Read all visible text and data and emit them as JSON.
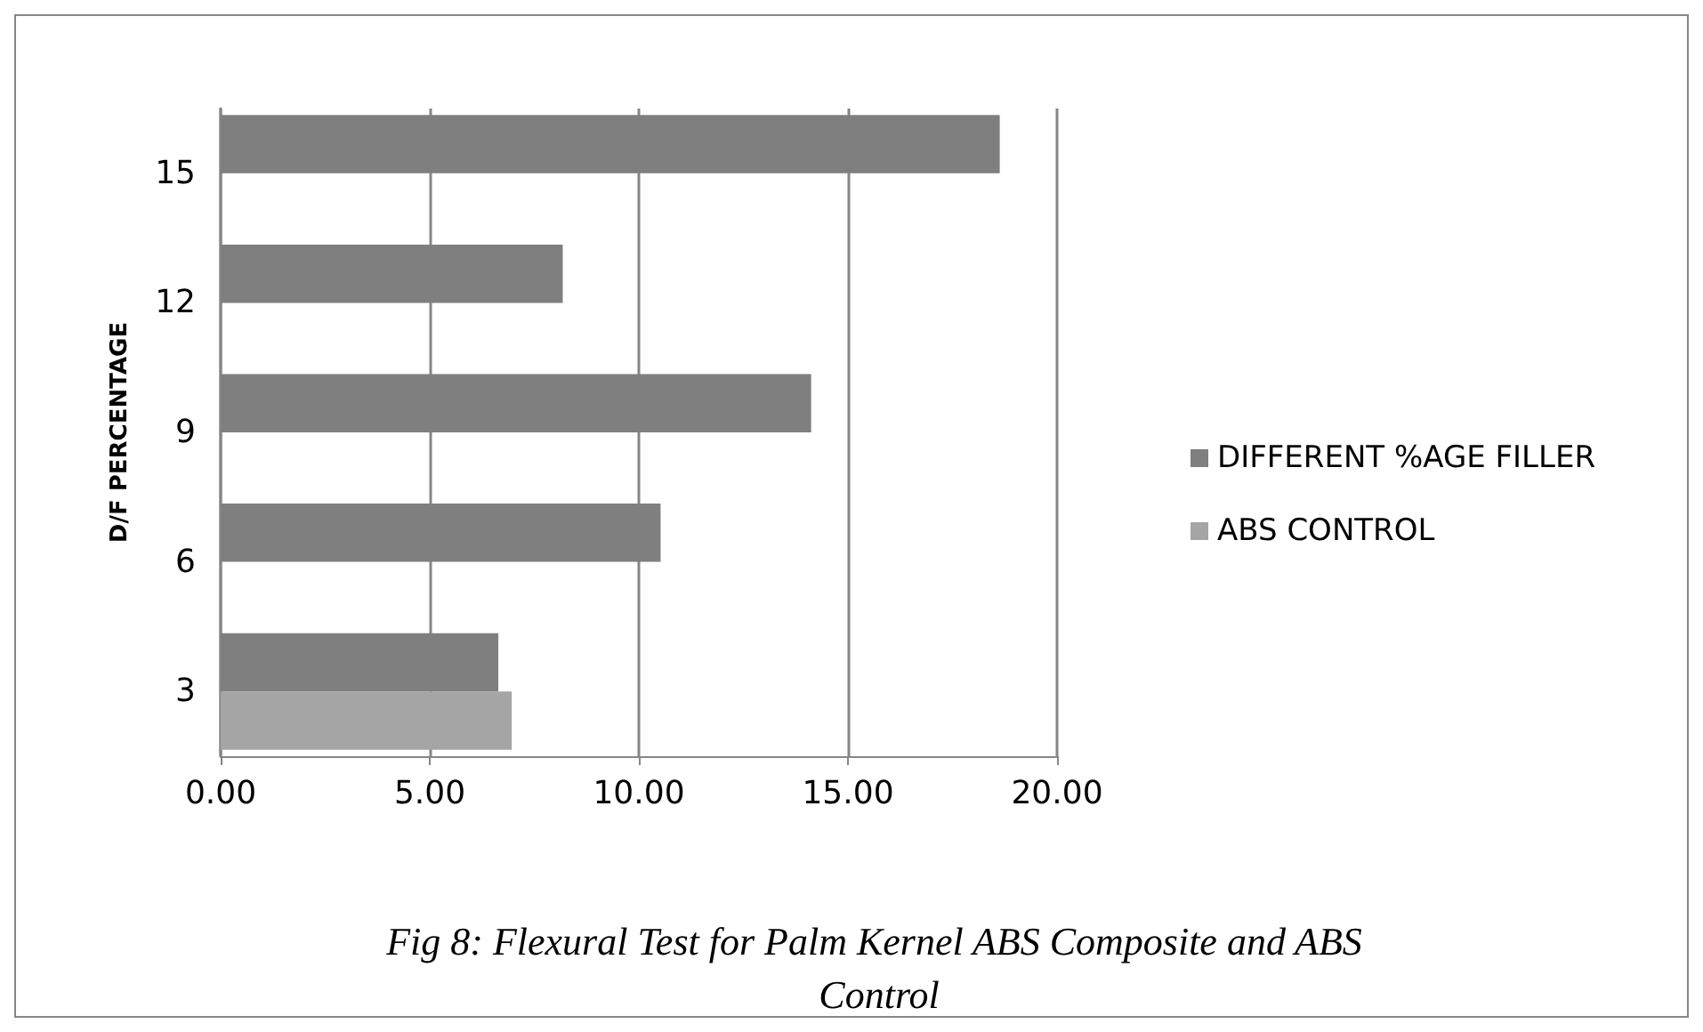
{
  "chart_data": {
    "type": "bar",
    "orientation": "horizontal",
    "title": "Fig 8: Flexural Test for Palm Kernel ABS Composite and ABS Control",
    "ylabel": "D/F PERCENTAGE",
    "categories": [
      "15",
      "12",
      "9",
      "6",
      "3"
    ],
    "series": [
      {
        "name": "DIFFERENT %AGE FILLER",
        "color": "#7f7f7f",
        "values": [
          18.63,
          8.18,
          14.12,
          10.52,
          6.64
        ]
      },
      {
        "name": "ABS CONTROL",
        "color": "#a5a5a5",
        "values": [
          null,
          null,
          null,
          null,
          6.96
        ]
      }
    ],
    "xlim": [
      0,
      20
    ],
    "xticks": [
      {
        "value": 0,
        "label": "0.00"
      },
      {
        "value": 5,
        "label": "5.00"
      },
      {
        "value": 10,
        "label": "10.00"
      },
      {
        "value": 15,
        "label": "15.00"
      },
      {
        "value": 20,
        "label": "20.00"
      }
    ],
    "grid": "x",
    "legend": "right"
  }
}
